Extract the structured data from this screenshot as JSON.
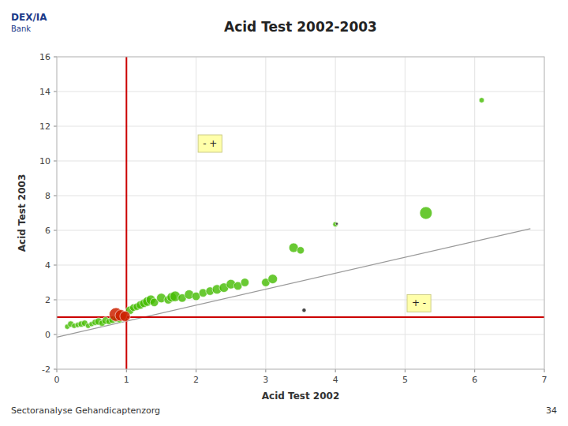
{
  "chart_data": {
    "type": "scatter",
    "title": "Acid Test 2002-2003",
    "xlabel": "Acid Test 2002",
    "ylabel": "Acid Test 2003",
    "xlim": [
      0,
      7
    ],
    "ylim": [
      -2,
      16
    ],
    "xticks": [
      0,
      1,
      2,
      3,
      4,
      5,
      6,
      7
    ],
    "yticks": [
      -2,
      0,
      2,
      4,
      6,
      8,
      10,
      12,
      14,
      16
    ],
    "grid": true,
    "logo_text": "DEX/IA",
    "logo_subtext": "Bank",
    "footer": "Sectoranalyse Gehandicaptenzorg",
    "page_number": 34,
    "trend_line": {
      "x": [
        0,
        6.8
      ],
      "values": [
        -0.15,
        6.1
      ],
      "color": "#999999"
    },
    "vline": {
      "x": 1.0,
      "color": "#cc0000"
    },
    "hline": {
      "y": 1.0,
      "color": "#cc0000"
    },
    "annotations": [
      {
        "text": "- +",
        "x": 2.2,
        "y": 11.0,
        "color": "#ffffaa"
      },
      {
        "text": "+ -",
        "x": 5.2,
        "y": 1.8,
        "color": "#ffffaa"
      }
    ],
    "series": [
      {
        "color": "#44bb00",
        "x": [
          0.15,
          0.2,
          0.25,
          0.3,
          0.35,
          0.4,
          0.45,
          0.5,
          0.55,
          0.6,
          0.65,
          0.7,
          0.75,
          0.8,
          0.85,
          0.9,
          0.95,
          1.05,
          1.1,
          1.15,
          1.2,
          1.25,
          1.3,
          1.35,
          1.4,
          1.5,
          1.6,
          1.65,
          1.7,
          1.8,
          1.9,
          2.0,
          2.1,
          2.2,
          2.3,
          2.4,
          2.5,
          2.6,
          2.7,
          3.0,
          3.1,
          3.4,
          3.5,
          4.0,
          5.3,
          6.1
        ],
        "values": [
          0.45,
          0.6,
          0.5,
          0.55,
          0.6,
          0.65,
          0.5,
          0.6,
          0.7,
          0.75,
          0.65,
          0.8,
          0.75,
          0.85,
          0.9,
          0.85,
          1.0,
          1.4,
          1.55,
          1.6,
          1.7,
          1.8,
          1.9,
          2.0,
          1.85,
          2.1,
          2.0,
          2.15,
          2.2,
          2.1,
          2.3,
          2.2,
          2.4,
          2.5,
          2.6,
          2.7,
          2.9,
          2.8,
          3.0,
          3.0,
          3.2,
          5.0,
          4.85,
          6.35,
          7.0,
          13.5
        ],
        "sizes": [
          5,
          6,
          5,
          5,
          6,
          6,
          5,
          5,
          6,
          7,
          6,
          7,
          6,
          7,
          6,
          6,
          7,
          8,
          7,
          7,
          8,
          8,
          9,
          9,
          8,
          9,
          8,
          9,
          10,
          8,
          9,
          8,
          8,
          8,
          9,
          9,
          9,
          8,
          8,
          8,
          9,
          9,
          7,
          5,
          12,
          5
        ]
      },
      {
        "color": "#cc2200",
        "x": [
          0.85,
          0.92,
          0.98
        ],
        "values": [
          1.15,
          1.1,
          1.05
        ],
        "sizes": [
          13,
          11,
          10
        ]
      },
      {
        "color": "#444444",
        "x": [
          3.55,
          4.02
        ],
        "values": [
          1.4,
          6.38
        ],
        "sizes": [
          3,
          2
        ]
      }
    ]
  }
}
